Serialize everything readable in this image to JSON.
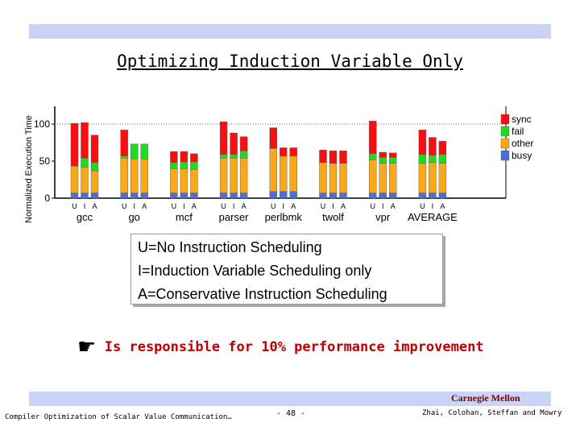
{
  "slide": {
    "title": "Optimizing Induction Variable Only",
    "band_color": "#c9d3f5",
    "legend_lines": [
      "U=No Instruction Scheduling",
      "I=Induction Variable Scheduling only",
      "A=Conservative Instruction Scheduling"
    ],
    "note_icon": "pointing-hand-icon",
    "note_icon_glyph": "☛",
    "note_text": "Is responsible for 10% performance improvement",
    "footer_org": "Carnegie Mellon",
    "footer_left": "Compiler Optimization of Scalar Value Communication…",
    "footer_center": "- 48 -",
    "footer_right": "Zhai, Colohan, Steffan and Mowry"
  },
  "chart_data": {
    "type": "bar",
    "stacked": true,
    "ylabel": "Normalized Execution Time",
    "yticks": [
      0,
      50,
      100
    ],
    "ylim": [
      0,
      125
    ],
    "grid": false,
    "legend_placement": "right",
    "bar_labels": [
      "U",
      "I",
      "A"
    ],
    "categories": [
      "gcc",
      "go",
      "mcf",
      "parser",
      "perlbmk",
      "twolf",
      "vpr",
      "AVERAGE"
    ],
    "series": [
      {
        "name": "busy",
        "color": "#4a6fd8",
        "values": [
          [
            7,
            7,
            7
          ],
          [
            7,
            7,
            7
          ],
          [
            7,
            7,
            7
          ],
          [
            7,
            7,
            7
          ],
          [
            9,
            9,
            9
          ],
          [
            7,
            7,
            7
          ],
          [
            7,
            7,
            7
          ],
          [
            7,
            7,
            7
          ]
        ]
      },
      {
        "name": "other",
        "color": "#f8a818",
        "values": [
          [
            36,
            35,
            30
          ],
          [
            47,
            46,
            46
          ],
          [
            33,
            33,
            32
          ],
          [
            47,
            47,
            47
          ],
          [
            58,
            48,
            48
          ],
          [
            41,
            40,
            40
          ],
          [
            45,
            40,
            40
          ],
          [
            40,
            41,
            40
          ]
        ]
      },
      {
        "name": "fail",
        "color": "#22d822",
        "values": [
          [
            1,
            12,
            11
          ],
          [
            3,
            20,
            20
          ],
          [
            8,
            9,
            10
          ],
          [
            5,
            5,
            10
          ],
          [
            0,
            0,
            0
          ],
          [
            0,
            0,
            0
          ],
          [
            8,
            8,
            8
          ],
          [
            12,
            10,
            12
          ]
        ]
      },
      {
        "name": "sync",
        "color": "#f81010",
        "values": [
          [
            57,
            48,
            37
          ],
          [
            35,
            0,
            0
          ],
          [
            15,
            14,
            11
          ],
          [
            44,
            29,
            19
          ],
          [
            28,
            11,
            11
          ],
          [
            17,
            17,
            17
          ],
          [
            44,
            7,
            6
          ],
          [
            33,
            24,
            18
          ]
        ]
      }
    ]
  }
}
